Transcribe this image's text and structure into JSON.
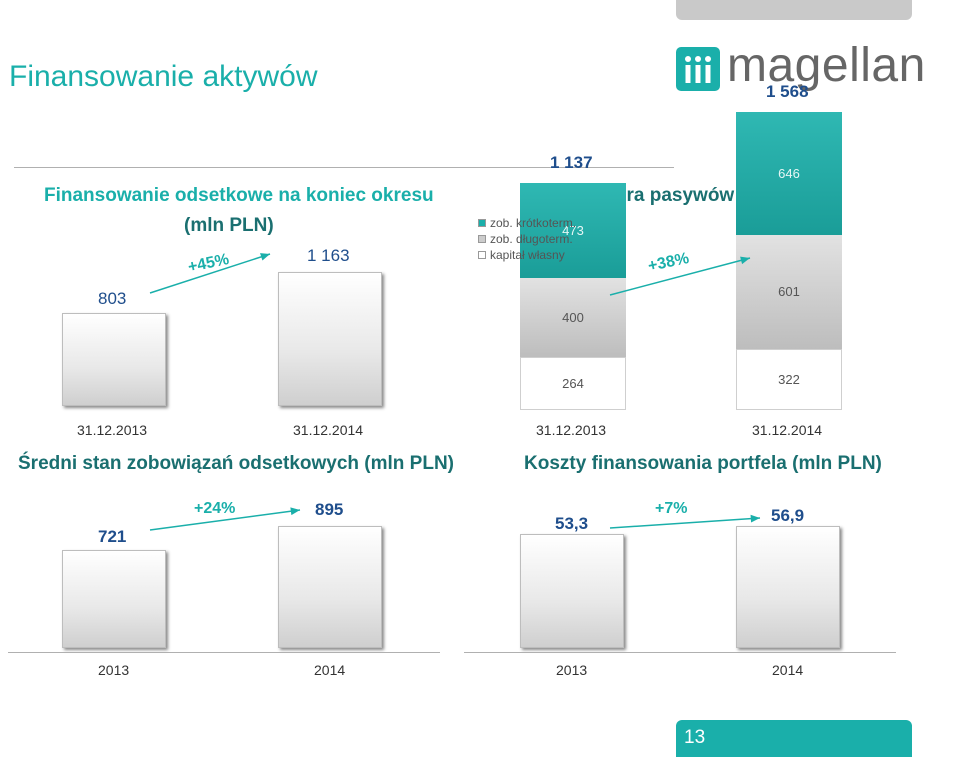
{
  "page": {
    "title": "Finansowanie aktywów",
    "logo_text": "magellan",
    "page_number": "13"
  },
  "chart_data": [
    {
      "type": "bar",
      "title": "Finansowanie odsetkowe na koniec okresu",
      "subtitle": "(mln PLN)",
      "categories": [
        "31.12.2013",
        "31.12.2014"
      ],
      "values": [
        803,
        1163
      ],
      "value_labels": [
        "803",
        "1 163"
      ],
      "growth": "+45%"
    },
    {
      "type": "bar",
      "stacked": true,
      "title": "Struktura pasywów (mln PLN)",
      "categories": [
        "31.12.2013",
        "31.12.2014"
      ],
      "series": [
        {
          "name": "kapitał własny",
          "values": [
            264,
            322
          ],
          "labels": [
            "264",
            "322"
          ]
        },
        {
          "name": "zob. długoterm.",
          "values": [
            400,
            601
          ],
          "labels": [
            "400",
            "601"
          ]
        },
        {
          "name": "zob. krótkoterm.",
          "values": [
            473,
            646
          ],
          "labels": [
            "473",
            "646"
          ]
        }
      ],
      "totals": [
        "1 137",
        "1 568"
      ],
      "growth": "+38%",
      "legend": [
        "zob. krótkoterm.",
        "zob. długoterm.",
        "kapitał własny"
      ],
      "legend_position": "top-left",
      "colors": {
        "zob. krótkoterm.": "#1aafaa",
        "zob. długoterm.": "#cccccc",
        "kapitał własny": "#ffffff"
      }
    },
    {
      "type": "bar",
      "title": "Średni stan zobowiązań odsetkowych (mln PLN)",
      "categories": [
        "2013",
        "2014"
      ],
      "values": [
        721,
        895
      ],
      "value_labels": [
        "721",
        "895"
      ],
      "growth": "+24%"
    },
    {
      "type": "bar",
      "title": "Koszty finansowania portfela (mln PLN)",
      "categories": [
        "2013",
        "2014"
      ],
      "values": [
        53.3,
        56.9
      ],
      "value_labels": [
        "53,3",
        "56,9"
      ],
      "growth": "+7%"
    }
  ],
  "colors": {
    "accent": "#1aafaa",
    "bar": "#e8e8e8",
    "value_text": "#1f4e8c"
  }
}
